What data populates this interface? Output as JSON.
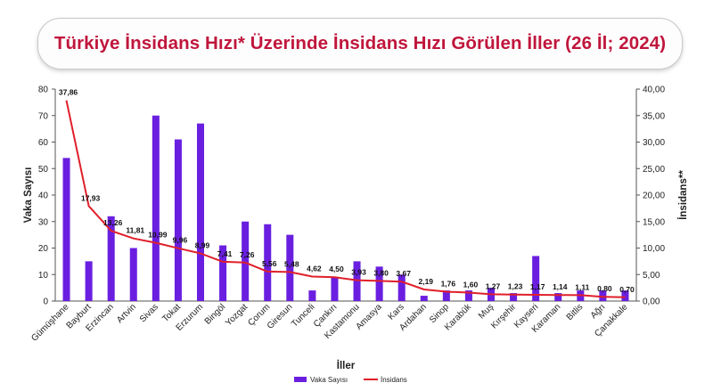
{
  "chart_data": {
    "type": "bar",
    "title": "Türkiye İnsidans Hızı* Üzerinde İnsidans Hızı Görülen İller (26 İl; 2024)",
    "xlabel": "İller",
    "ylabel": "Vaka Sayısı",
    "y2label": "İnsidans**",
    "ylim": [
      0,
      80
    ],
    "y2lim": [
      0,
      40
    ],
    "yticks": [
      "0",
      "10",
      "20",
      "30",
      "40",
      "50",
      "60",
      "70",
      "80"
    ],
    "y2ticks": [
      "0,00",
      "5,00",
      "10,00",
      "15,00",
      "20,00",
      "25,00",
      "30,00",
      "35,00",
      "40,00"
    ],
    "grid": false,
    "legend_position": "bottom",
    "categories": [
      "Gümüşhane",
      "Bayburt",
      "Erzincan",
      "Artvin",
      "Sivas",
      "Tokat",
      "Erzurum",
      "Bingöl",
      "Yozgat",
      "Çorum",
      "Giresun",
      "Tunceli",
      "Çankırı",
      "Kastamonu",
      "Amasya",
      "Kars",
      "Ardahan",
      "Sinop",
      "Karabük",
      "Muş",
      "Kırşehir",
      "Kayseri",
      "Karaman",
      "Bitlis",
      "Ağrı",
      "Çanakkale"
    ],
    "series": [
      {
        "name": "Vaka Sayısı",
        "type": "bar",
        "axis": "left",
        "color": "#6a1fe0",
        "values": [
          54,
          15,
          32,
          20,
          70,
          61,
          67,
          21,
          30,
          29,
          25,
          4,
          9,
          15,
          13,
          10,
          2,
          4,
          4,
          5,
          3,
          17,
          3,
          4,
          4,
          4
        ]
      },
      {
        "name": "İnsidans",
        "type": "line",
        "axis": "right",
        "color": "#e01f2a",
        "values": [
          37.86,
          17.93,
          13.26,
          11.81,
          10.99,
          9.96,
          8.99,
          7.41,
          7.26,
          5.56,
          5.48,
          4.62,
          4.5,
          3.93,
          3.8,
          3.67,
          2.19,
          1.76,
          1.6,
          1.27,
          1.23,
          1.17,
          1.14,
          1.11,
          0.8,
          0.7
        ],
        "labels": [
          "37,86",
          "17,93",
          "13,26",
          "11,81",
          "10,99",
          "9,96",
          "8,99",
          "7,41",
          "7,26",
          "5,56",
          "5,48",
          "4,62",
          "4,50",
          "3,93",
          "3,80",
          "3,67",
          "2,19",
          "1,76",
          "1,60",
          "1,27",
          "1,23",
          "1,17",
          "1,14",
          "1,11",
          "0,80",
          "0,70"
        ]
      }
    ]
  }
}
